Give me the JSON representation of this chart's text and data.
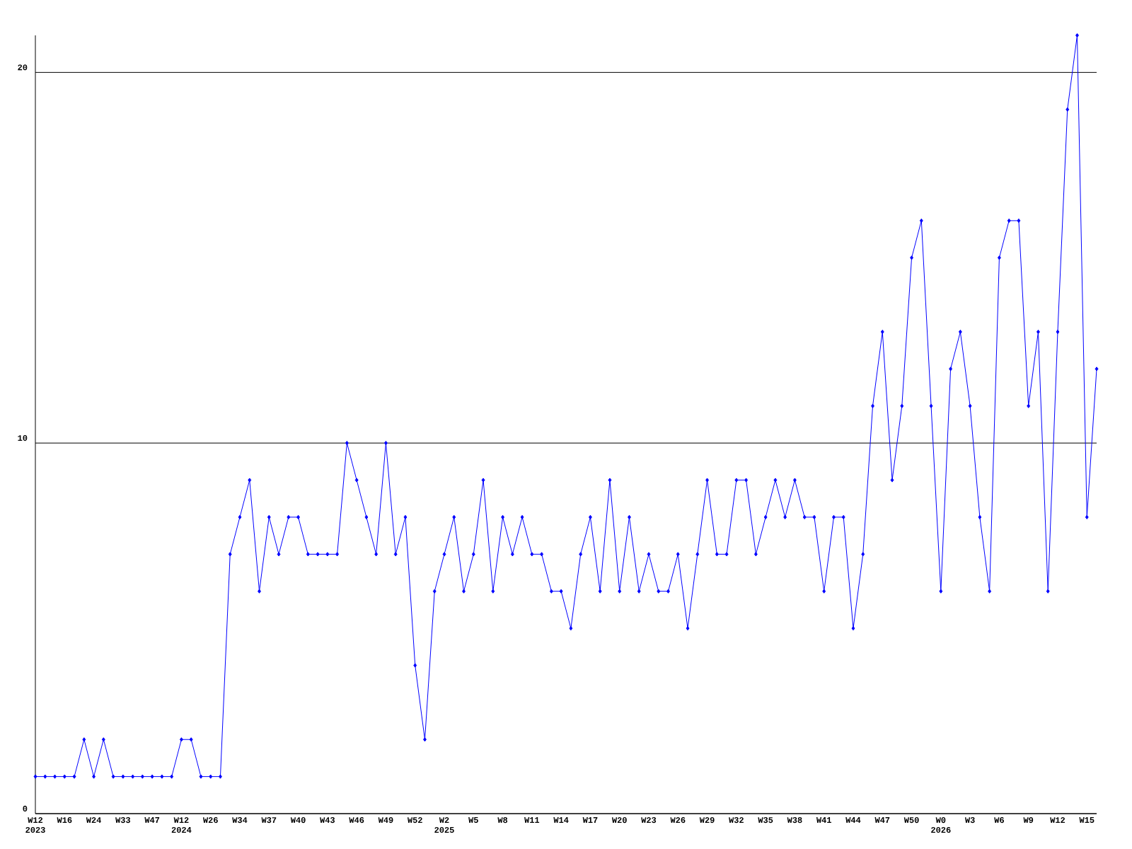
{
  "chart_data": {
    "type": "line",
    "categories": [
      "W12 2023",
      null,
      null,
      "W16",
      null,
      null,
      "W24",
      null,
      null,
      "W33",
      null,
      null,
      "W47",
      null,
      null,
      "W12 2024",
      null,
      null,
      "W26",
      null,
      null,
      "W34",
      null,
      null,
      "W37",
      null,
      null,
      "W40",
      null,
      null,
      "W43",
      null,
      null,
      "W46",
      null,
      null,
      "W49",
      null,
      null,
      "W52",
      null,
      null,
      "W2 2025",
      null,
      null,
      "W5",
      null,
      null,
      "W8",
      null,
      null,
      "W11",
      null,
      null,
      "W14",
      null,
      null,
      "W17",
      null,
      null,
      "W20",
      null,
      null,
      "W23",
      null,
      null,
      "W26",
      null,
      null,
      "W29",
      null,
      null,
      "W32",
      null,
      null,
      "W35",
      null,
      null,
      "W38",
      null,
      null,
      "W41",
      null,
      null,
      "W44",
      null,
      null,
      "W47",
      null,
      null,
      "W50",
      null,
      null,
      "W0 2026",
      null,
      null,
      "W3",
      null,
      null,
      "W6",
      null,
      null,
      "W9",
      null,
      null,
      "W12",
      null,
      null,
      "W15",
      null
    ],
    "values": [
      1,
      1,
      1,
      1,
      1,
      2,
      1,
      2,
      1,
      1,
      1,
      1,
      1,
      1,
      1,
      2,
      2,
      1,
      1,
      1,
      7,
      8,
      9,
      6,
      8,
      7,
      8,
      8,
      7,
      7,
      7,
      7,
      10,
      9,
      8,
      7,
      10,
      7,
      8,
      4,
      2,
      6,
      7,
      8,
      6,
      7,
      9,
      6,
      8,
      7,
      8,
      7,
      7,
      6,
      6,
      5,
      7,
      8,
      6,
      9,
      6,
      8,
      6,
      7,
      6,
      6,
      7,
      5,
      7,
      9,
      7,
      7,
      9,
      9,
      7,
      8,
      9,
      8,
      9,
      8,
      8,
      6,
      8,
      8,
      5,
      7,
      11,
      13,
      9,
      11,
      15,
      16,
      11,
      6,
      12,
      13,
      11,
      8,
      6,
      15,
      16,
      16,
      11,
      13,
      6,
      13,
      19,
      21,
      8,
      12
    ],
    "color": "#0000ff",
    "marker": "diamond",
    "ylim": [
      0,
      21
    ],
    "yticks": [
      0,
      10,
      20
    ],
    "grid": "y"
  }
}
